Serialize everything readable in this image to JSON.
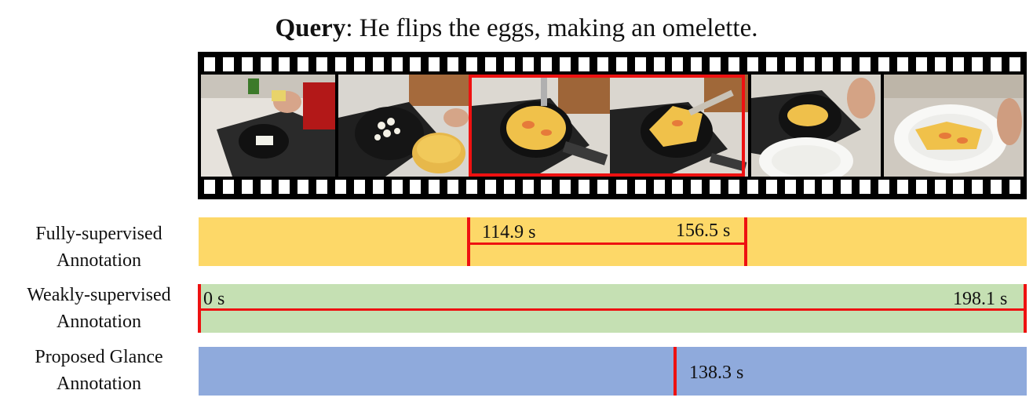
{
  "query": {
    "prefix": "Query",
    "text": ": He flips the eggs, making an omelette."
  },
  "rows": [
    {
      "label_line1": "Fully-supervised",
      "label_line2": "Annotation",
      "start_label": "114.9 s",
      "end_label": "156.5 s",
      "color": "#fdd868"
    },
    {
      "label_line1": "Weakly-supervised",
      "label_line2": "Annotation",
      "start_label": "0 s",
      "end_label": "198.1 s",
      "color": "#c5e0b3"
    },
    {
      "label_line1": "Proposed Glance",
      "label_line2": "Annotation",
      "point_label": "138.3 s",
      "color": "#8faadc"
    }
  ],
  "timeline": {
    "start": 0,
    "end": 198.1,
    "segment": [
      114.9,
      156.5
    ],
    "glance": 138.3
  },
  "colors": {
    "marker": "#ee1111",
    "film": "#000000"
  }
}
